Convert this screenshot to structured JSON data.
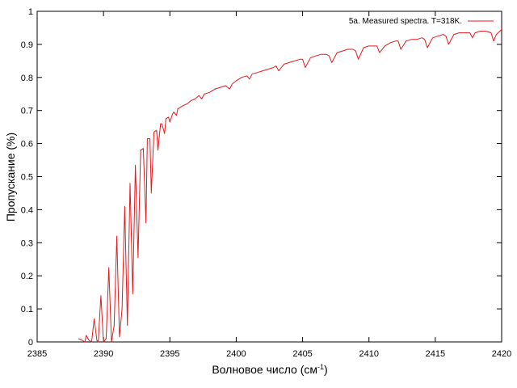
{
  "chart_data": {
    "type": "line",
    "title": "",
    "xlabel": "Волновое число (см",
    "xlabel_sup": "-1",
    "xlabel_end": ")",
    "ylabel": "Пропускание (%)",
    "xlim": [
      2385,
      2420
    ],
    "ylim": [
      0,
      1
    ],
    "xticks": [
      2385,
      2390,
      2395,
      2400,
      2405,
      2410,
      2415,
      2420
    ],
    "yticks": [
      0,
      0.1,
      0.2,
      0.3,
      0.4,
      0.5,
      0.6,
      0.7,
      0.8,
      0.9,
      1
    ],
    "ytick_labels": [
      "0",
      "0.1",
      "0.2",
      "0.3",
      "0.4",
      "0.5",
      "0.6",
      "0.7",
      "0.8",
      "0.9",
      "1"
    ],
    "grid": false,
    "legend_position": "top-right",
    "series": [
      {
        "name": "5a. Measured spectra. T=318K.",
        "color": "#e41a1c",
        "x": [
          2388.1,
          2388.4,
          2388.6,
          2388.7,
          2388.9,
          2389.1,
          2389.3,
          2389.5,
          2389.6,
          2389.8,
          2390.0,
          2390.2,
          2390.4,
          2390.6,
          2390.8,
          2391.0,
          2391.2,
          2391.4,
          2391.6,
          2391.8,
          2392.0,
          2392.2,
          2392.4,
          2392.6,
          2392.8,
          2393.0,
          2393.2,
          2393.3,
          2393.5,
          2393.6,
          2393.8,
          2394.0,
          2394.1,
          2394.3,
          2394.4,
          2394.6,
          2394.7,
          2394.9,
          2395.0,
          2395.2,
          2395.3,
          2395.5,
          2395.6,
          2395.8,
          2396.0,
          2396.3,
          2396.6,
          2396.9,
          2397.2,
          2397.4,
          2397.6,
          2398.0,
          2398.4,
          2398.8,
          2399.2,
          2399.5,
          2399.7,
          2400.0,
          2400.4,
          2400.8,
          2401.0,
          2401.2,
          2401.6,
          2402.0,
          2402.4,
          2402.8,
          2403.0,
          2403.2,
          2403.6,
          2404.0,
          2404.4,
          2404.8,
          2405.0,
          2405.2,
          2405.6,
          2406.0,
          2406.4,
          2406.8,
          2407.0,
          2407.2,
          2407.6,
          2408.0,
          2408.4,
          2408.8,
          2409.0,
          2409.2,
          2409.6,
          2410.0,
          2410.4,
          2410.6,
          2410.8,
          2411.2,
          2411.6,
          2412.0,
          2412.2,
          2412.4,
          2412.8,
          2413.2,
          2413.6,
          2414.0,
          2414.2,
          2414.4,
          2414.8,
          2415.2,
          2415.6,
          2415.8,
          2416.0,
          2416.4,
          2416.8,
          2417.2,
          2417.6,
          2417.8,
          2418.0,
          2418.4,
          2418.8,
          2419.2,
          2419.4,
          2419.6,
          2420.0
        ],
        "y": [
          0.01,
          0.005,
          0.0,
          0.02,
          0.005,
          0.0,
          0.07,
          0.005,
          0.0,
          0.14,
          0.0,
          0.01,
          0.225,
          0.0,
          0.05,
          0.32,
          0.015,
          0.1,
          0.41,
          0.05,
          0.48,
          0.145,
          0.535,
          0.255,
          0.58,
          0.585,
          0.36,
          0.615,
          0.615,
          0.45,
          0.635,
          0.64,
          0.58,
          0.66,
          0.66,
          0.63,
          0.675,
          0.68,
          0.665,
          0.69,
          0.695,
          0.685,
          0.705,
          0.71,
          0.715,
          0.72,
          0.73,
          0.735,
          0.745,
          0.735,
          0.75,
          0.755,
          0.765,
          0.77,
          0.775,
          0.765,
          0.78,
          0.79,
          0.8,
          0.805,
          0.795,
          0.81,
          0.815,
          0.82,
          0.825,
          0.83,
          0.835,
          0.82,
          0.84,
          0.845,
          0.85,
          0.855,
          0.855,
          0.83,
          0.86,
          0.865,
          0.87,
          0.87,
          0.865,
          0.845,
          0.875,
          0.88,
          0.885,
          0.885,
          0.88,
          0.855,
          0.89,
          0.895,
          0.895,
          0.895,
          0.875,
          0.895,
          0.905,
          0.91,
          0.91,
          0.885,
          0.91,
          0.915,
          0.915,
          0.92,
          0.915,
          0.89,
          0.92,
          0.925,
          0.93,
          0.925,
          0.9,
          0.93,
          0.935,
          0.935,
          0.935,
          0.92,
          0.935,
          0.94,
          0.94,
          0.935,
          0.91,
          0.93,
          0.945
        ]
      }
    ]
  }
}
